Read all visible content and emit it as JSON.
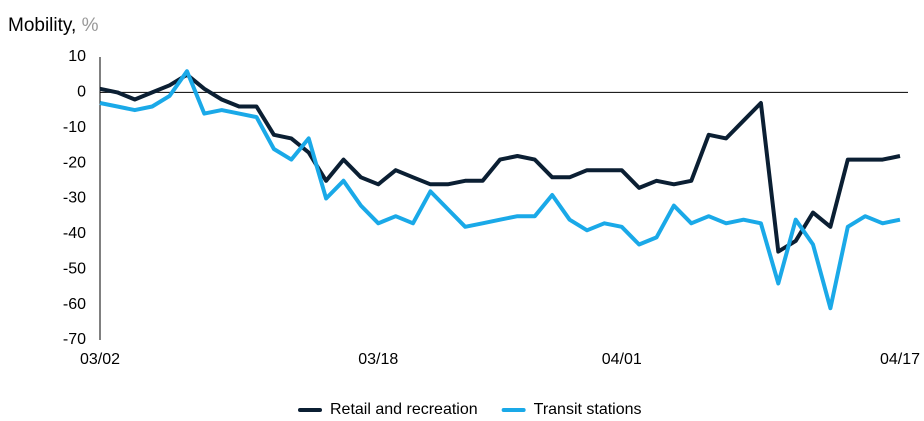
{
  "chart_data": {
    "type": "line",
    "title": "Mobility,",
    "unit": "%",
    "categories": [
      "03/02",
      null,
      null,
      null,
      null,
      null,
      null,
      null,
      null,
      null,
      null,
      null,
      null,
      null,
      null,
      null,
      "03/18",
      null,
      null,
      null,
      null,
      null,
      null,
      null,
      null,
      null,
      null,
      null,
      null,
      null,
      "04/01",
      null,
      null,
      null,
      null,
      null,
      null,
      null,
      null,
      null,
      null,
      null,
      null,
      null,
      null,
      null,
      "04/17"
    ],
    "series": [
      {
        "name": "Retail and recreation",
        "color": "#0b1f33",
        "values": [
          1,
          0,
          -2,
          0,
          2,
          5,
          1,
          -2,
          -4,
          -4,
          -12,
          -13,
          -17,
          -25,
          -19,
          -24,
          -26,
          -22,
          -24,
          -26,
          -26,
          -25,
          -25,
          -19,
          -18,
          -19,
          -24,
          -24,
          -22,
          -22,
          -22,
          -27,
          -25,
          -26,
          -25,
          -12,
          -13,
          -8,
          -3,
          -45,
          -42,
          -34,
          -38,
          -19,
          -19,
          -19,
          -18
        ]
      },
      {
        "name": "Transit stations",
        "color": "#1aa9e8",
        "values": [
          -3,
          -4,
          -5,
          -4,
          -1,
          6,
          -6,
          -5,
          -6,
          -7,
          -16,
          -19,
          -13,
          -30,
          -25,
          -32,
          -37,
          -35,
          -37,
          -28,
          -33,
          -38,
          -37,
          -36,
          -35,
          -35,
          -29,
          -36,
          -39,
          -37,
          -38,
          -43,
          -41,
          -32,
          -37,
          -35,
          -37,
          -36,
          -37,
          -54,
          -36,
          -43,
          -61,
          -38,
          -35,
          -37,
          -36
        ]
      }
    ],
    "ylim": [
      -70,
      10
    ],
    "yticks": [
      10,
      0,
      -10,
      -20,
      -30,
      -40,
      -50,
      -60,
      -70
    ],
    "grid": false,
    "legend": "bottom"
  }
}
